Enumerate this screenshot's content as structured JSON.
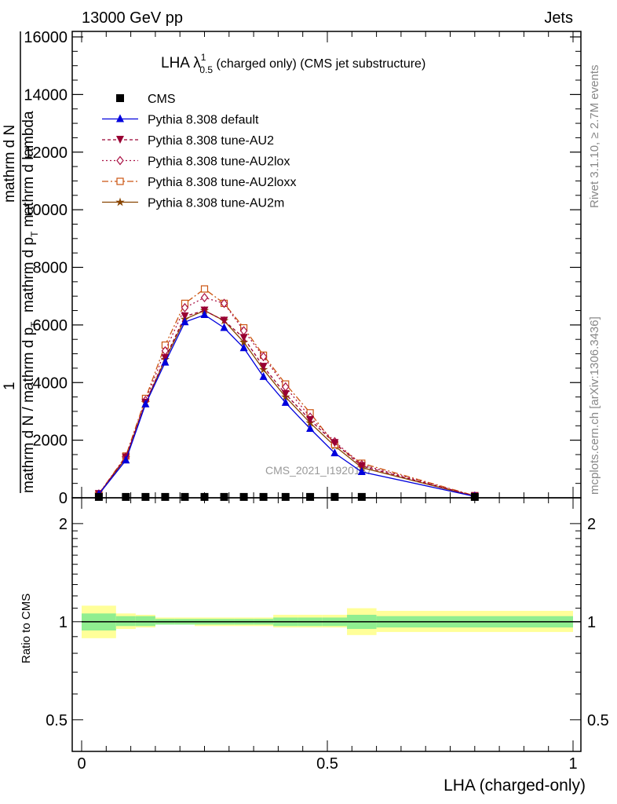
{
  "header": {
    "energy": "13000 GeV pp",
    "process": "Jets",
    "rivet": "Rivet 3.1.10, ≥ 2.7M events",
    "mcplots": "mcplots.cern.ch [arXiv:1306.3436]",
    "watermark": "CMS_2021_I1920187"
  },
  "main_plot": {
    "title_main": "LHA λ",
    "title_sup": "1",
    "title_sub": "0.5",
    "title_rest": " (charged only) (CMS jet substructure)",
    "ylabel_parts": [
      "1",
      "mathrm d N / mathrm d p",
      "T",
      "mathrm d N",
      "mathrm d p",
      "T",
      " mathrm d lambda"
    ],
    "yticks": [
      "0",
      "2000",
      "4000",
      "6000",
      "8000",
      "10000",
      "12000",
      "14000",
      "16000"
    ]
  },
  "ratio_plot": {
    "ylabel": "Ratio to CMS",
    "yticks": [
      "0.5",
      "1",
      "2"
    ],
    "xticks": [
      "0",
      "0.5",
      "1"
    ],
    "xlabel": "LHA (charged-only)"
  },
  "colors": {
    "cms": "#000000",
    "default": "#0000dd",
    "au2": "#990033",
    "au2lox": "#aa1144",
    "au2loxx": "#cc5511",
    "au2m": "#884400",
    "band_inner": "#90ee90",
    "band_outer": "#ffff99"
  },
  "chart_data": [
    {
      "type": "line",
      "xlim": [
        0,
        1
      ],
      "ylim": [
        0,
        16000
      ],
      "bin_edges": [
        0.0,
        0.07,
        0.11,
        0.15,
        0.19,
        0.23,
        0.27,
        0.31,
        0.35,
        0.39,
        0.44,
        0.49,
        0.54,
        0.6,
        1.0
      ],
      "x": [
        0.035,
        0.09,
        0.13,
        0.17,
        0.21,
        0.25,
        0.29,
        0.33,
        0.37,
        0.415,
        0.465,
        0.515,
        0.57,
        0.8
      ],
      "series": [
        {
          "name": "CMS",
          "key": "cms",
          "marker": "square",
          "dash": "",
          "values": [
            30,
            30,
            30,
            30,
            30,
            30,
            30,
            30,
            30,
            30,
            30,
            30,
            30,
            30
          ]
        },
        {
          "name": "Pythia 8.308 default",
          "key": "default",
          "marker": "triangle-up",
          "dash": "",
          "values": [
            120,
            1300,
            3250,
            4700,
            6100,
            6350,
            5900,
            5200,
            4200,
            3300,
            2400,
            1550,
            900,
            50
          ]
        },
        {
          "name": "Pythia 8.308 tune-AU2",
          "key": "au2",
          "marker": "triangle-down",
          "dash": "4,3",
          "values": [
            130,
            1400,
            3300,
            4850,
            6300,
            6500,
            6150,
            5550,
            4550,
            3600,
            2700,
            1900,
            1100,
            60
          ]
        },
        {
          "name": "Pythia 8.308 tune-AU2lox",
          "key": "au2lox",
          "marker": "diamond",
          "dash": "2,3",
          "values": [
            135,
            1420,
            3380,
            5100,
            6600,
            6950,
            6750,
            5800,
            4900,
            3850,
            2800,
            1950,
            1150,
            60
          ]
        },
        {
          "name": "Pythia 8.308 tune-AU2loxx",
          "key": "au2loxx",
          "marker": "square-open",
          "dash": "8,3,2,3",
          "values": [
            140,
            1450,
            3450,
            5300,
            6750,
            7250,
            6750,
            5900,
            4950,
            3950,
            2950,
            1850,
            1200,
            70
          ]
        },
        {
          "name": "Pythia 8.308 tune-AU2m",
          "key": "au2m",
          "marker": "star",
          "dash": "",
          "values": [
            125,
            1380,
            3300,
            4800,
            6200,
            6500,
            6150,
            5400,
            4450,
            3500,
            2600,
            1800,
            1050,
            55
          ]
        }
      ]
    },
    {
      "type": "area",
      "ylabel": "Ratio to CMS",
      "ylim": [
        0.4,
        2.4
      ],
      "log_scale": true,
      "reference": 1.0,
      "bin_edges": [
        0.0,
        0.07,
        0.11,
        0.15,
        0.19,
        0.23,
        0.27,
        0.31,
        0.35,
        0.39,
        0.44,
        0.49,
        0.54,
        0.6,
        1.0
      ],
      "inner_band": [
        [
          0.94,
          1.06
        ],
        [
          0.97,
          1.04
        ],
        [
          0.97,
          1.04
        ],
        [
          0.98,
          1.02
        ],
        [
          0.98,
          1.02
        ],
        [
          0.98,
          1.02
        ],
        [
          0.98,
          1.02
        ],
        [
          0.98,
          1.02
        ],
        [
          0.98,
          1.02
        ],
        [
          0.97,
          1.03
        ],
        [
          0.97,
          1.03
        ],
        [
          0.97,
          1.03
        ],
        [
          0.95,
          1.05
        ],
        [
          0.96,
          1.04
        ]
      ],
      "outer_band": [
        [
          0.89,
          1.12
        ],
        [
          0.95,
          1.06
        ],
        [
          0.96,
          1.05
        ],
        [
          0.98,
          1.03
        ],
        [
          0.98,
          1.03
        ],
        [
          0.97,
          1.03
        ],
        [
          0.97,
          1.03
        ],
        [
          0.97,
          1.03
        ],
        [
          0.97,
          1.03
        ],
        [
          0.96,
          1.05
        ],
        [
          0.96,
          1.05
        ],
        [
          0.96,
          1.05
        ],
        [
          0.91,
          1.1
        ],
        [
          0.93,
          1.08
        ]
      ]
    }
  ]
}
